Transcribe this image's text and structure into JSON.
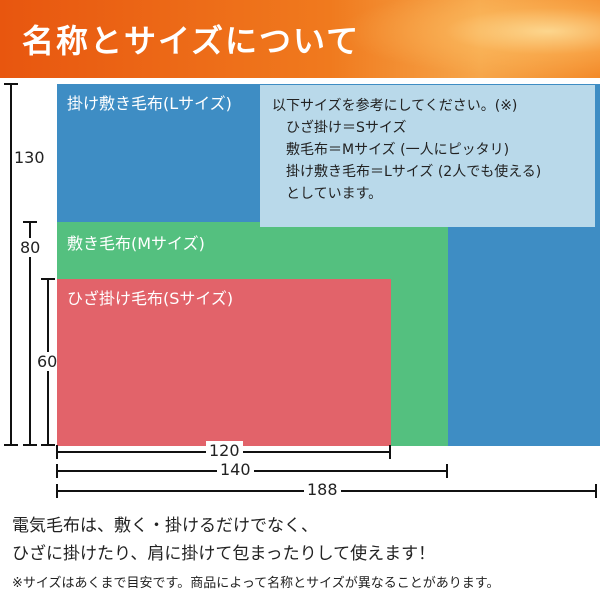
{
  "header": {
    "title": "名称とサイズについて"
  },
  "blankets": {
    "large": {
      "label": "掛け敷き毛布(Lサイズ)",
      "color": "#3e8dc4"
    },
    "medium": {
      "label": "敷き毛布(Mサイズ)",
      "color": "#54c07f"
    },
    "small": {
      "label": "ひざ掛け毛布(Sサイズ)",
      "color": "#e2636a"
    }
  },
  "note": {
    "line1": "以下サイズを参考にしてください。(※)",
    "line2": "ひざ掛け＝Sサイズ",
    "line3": "敷毛布＝Mサイズ (一人にピッタリ)",
    "line4": "掛け敷き毛布＝Lサイズ (2人でも使える)",
    "line5": "としています。"
  },
  "dimensions": {
    "heights": {
      "large": "130",
      "medium": "80",
      "small": "60"
    },
    "widths": {
      "small": "120",
      "medium": "140",
      "large": "188"
    }
  },
  "description": {
    "line1": "電気毛布は、敷く・掛けるだけでなく、",
    "line2": "ひざに掛けたり、肩に掛けて包まったりして使えます！"
  },
  "footnote": "※サイズはあくまで目安です。商品によって名称とサイズが異なることがあります。"
}
